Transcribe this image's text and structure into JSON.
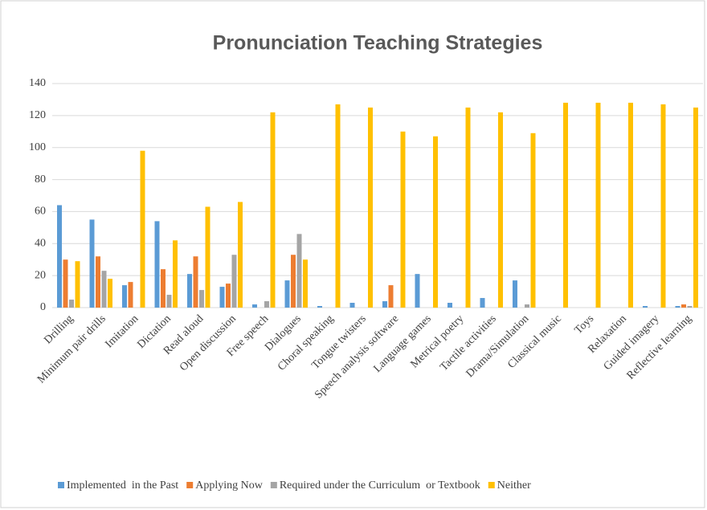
{
  "chart_data": {
    "type": "bar",
    "title": "Pronunciation Teaching Strategies",
    "categories": [
      "Drilling",
      "Minimum  pair drills",
      "Imitation",
      "Dictation",
      "Read aloud",
      "Open discussion",
      "Free speech",
      "Dialogues",
      "Choral speaking",
      "Tongue twisters",
      "Speech analysis software",
      "Language games",
      "Metrical poetry",
      "Tactile activities",
      "Drama/Simulation",
      "Classical music",
      "Toys",
      "Relaxation",
      "Guided imagery",
      "Reflective learning"
    ],
    "series": [
      {
        "name": "Implemented  in the Past",
        "color": "#5b9bd5",
        "values": [
          64,
          55,
          14,
          54,
          21,
          13,
          2,
          17,
          1,
          3,
          4,
          21,
          3,
          6,
          17,
          0,
          0,
          0,
          1,
          1
        ]
      },
      {
        "name": "Applying Now",
        "color": "#ed7d31",
        "values": [
          30,
          32,
          16,
          24,
          32,
          15,
          0,
          33,
          0,
          0,
          14,
          0,
          0,
          0,
          0,
          0,
          0,
          0,
          0,
          2
        ]
      },
      {
        "name": "Required under the Curriculum  or Textbook",
        "color": "#a5a5a5",
        "values": [
          5,
          23,
          0,
          8,
          11,
          33,
          4,
          46,
          0,
          0,
          0,
          0,
          0,
          0,
          2,
          0,
          0,
          0,
          0,
          1
        ]
      },
      {
        "name": "Neither",
        "color": "#ffc000",
        "values": [
          29,
          18,
          98,
          42,
          63,
          66,
          122,
          30,
          127,
          125,
          110,
          107,
          125,
          122,
          109,
          128,
          128,
          128,
          127,
          125
        ]
      }
    ],
    "ylim": [
      0,
      140
    ],
    "yticks": [
      0,
      20,
      40,
      60,
      80,
      100,
      120,
      140
    ],
    "grid": true,
    "legend": "bottom"
  }
}
